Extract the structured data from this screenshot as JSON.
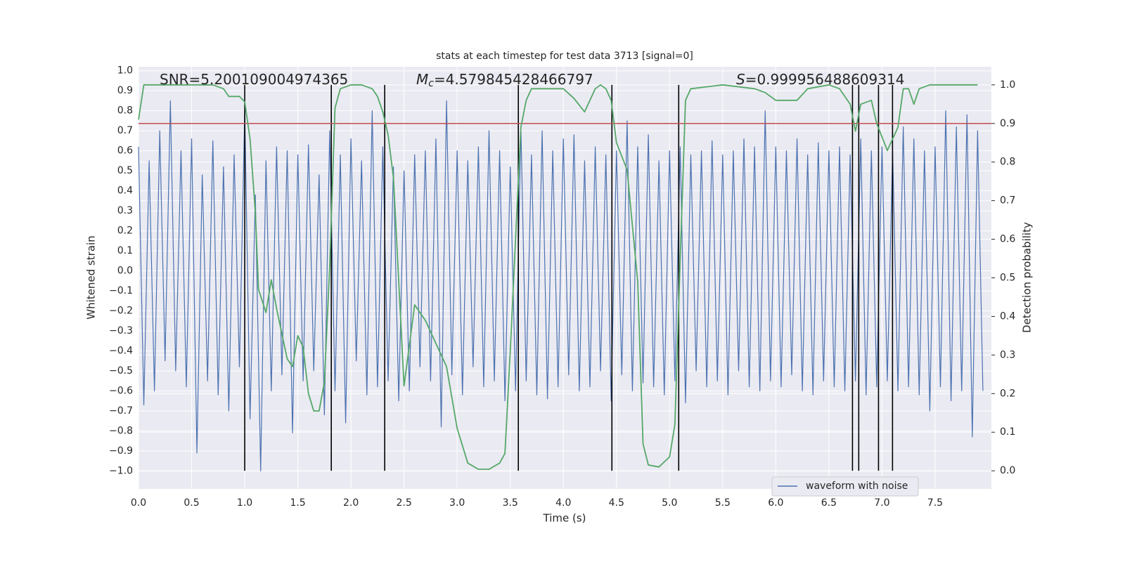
{
  "chart_data": {
    "type": "line",
    "title": "stats at each timestep for test data 3713 [signal=0]",
    "xlabel": "Time (s)",
    "ylabel": "Whitened strain",
    "y2label": "Detection probability",
    "xlim": [
      0,
      8.03
    ],
    "ylim": [
      -1.09,
      1.02
    ],
    "y2lim": [
      -0.047,
      1.047
    ],
    "xticks": [
      {
        "value": 0,
        "label": "0.0"
      },
      {
        "value": 0.5,
        "label": "0.5"
      },
      {
        "value": 1,
        "label": "1.0"
      },
      {
        "value": 1.5,
        "label": "1.5"
      },
      {
        "value": 2,
        "label": "2.0"
      },
      {
        "value": 2.5,
        "label": "2.5"
      },
      {
        "value": 3,
        "label": "3.0"
      },
      {
        "value": 3.5,
        "label": "3.5"
      },
      {
        "value": 4,
        "label": "4.0"
      },
      {
        "value": 4.5,
        "label": "4.5"
      },
      {
        "value": 5,
        "label": "5.0"
      },
      {
        "value": 5.5,
        "label": "5.5"
      },
      {
        "value": 6,
        "label": "6.0"
      },
      {
        "value": 6.5,
        "label": "6.5"
      },
      {
        "value": 7,
        "label": "7.0"
      },
      {
        "value": 7.5,
        "label": "7.5"
      }
    ],
    "yticks": [
      {
        "value": -1,
        "label": "−1.0"
      },
      {
        "value": -0.9,
        "label": "−0.9"
      },
      {
        "value": -0.8,
        "label": "−0.8"
      },
      {
        "value": -0.7,
        "label": "−0.7"
      },
      {
        "value": -0.6,
        "label": "−0.6"
      },
      {
        "value": -0.5,
        "label": "−0.5"
      },
      {
        "value": -0.4,
        "label": "−0.4"
      },
      {
        "value": -0.3,
        "label": "−0.3"
      },
      {
        "value": -0.2,
        "label": "−0.2"
      },
      {
        "value": -0.1,
        "label": "−0.1"
      },
      {
        "value": 0,
        "label": "0.0"
      },
      {
        "value": 0.1,
        "label": "0.1"
      },
      {
        "value": 0.2,
        "label": "0.2"
      },
      {
        "value": 0.3,
        "label": "0.3"
      },
      {
        "value": 0.4,
        "label": "0.4"
      },
      {
        "value": 0.5,
        "label": "0.5"
      },
      {
        "value": 0.6,
        "label": "0.6"
      },
      {
        "value": 0.7,
        "label": "0.7"
      },
      {
        "value": 0.8,
        "label": "0.8"
      },
      {
        "value": 0.9,
        "label": "0.9"
      },
      {
        "value": 1,
        "label": "1.0"
      }
    ],
    "y2ticks": [
      {
        "value": 0,
        "label": "0.0"
      },
      {
        "value": 0.1,
        "label": "0.1"
      },
      {
        "value": 0.2,
        "label": "0.2"
      },
      {
        "value": 0.3,
        "label": "0.3"
      },
      {
        "value": 0.4,
        "label": "0.4"
      },
      {
        "value": 0.5,
        "label": "0.5"
      },
      {
        "value": 0.6,
        "label": "0.6"
      },
      {
        "value": 0.7,
        "label": "0.7"
      },
      {
        "value": 0.8,
        "label": "0.8"
      },
      {
        "value": 0.9,
        "label": "0.9"
      },
      {
        "value": 1,
        "label": "1.0"
      }
    ],
    "grid": true,
    "legend": "lower right",
    "annotations": [
      {
        "text": "SNR=5.200109004974365"
      },
      {
        "symbol": "M",
        "sub": "c",
        "text": "=4.579845428466797"
      },
      {
        "symbol": "S",
        "text": "=0.999956488609314"
      }
    ],
    "threshold": {
      "value": 0.9,
      "axis": "y2",
      "color": "#c44e52"
    },
    "vlines": {
      "x": [
        1.0,
        1.815,
        2.318,
        3.576,
        4.457,
        5.086,
        6.722,
        6.781,
        6.967,
        7.099
      ],
      "ymin": 0,
      "ymax": 1,
      "axis": "y2",
      "color": "#000000"
    },
    "series": [
      {
        "name": "waveform with noise",
        "color": "#4c72b0",
        "x": [
          0,
          0.05,
          0.1,
          0.15,
          0.2,
          0.25,
          0.3,
          0.35,
          0.4,
          0.45,
          0.5,
          0.55,
          0.6,
          0.65,
          0.7,
          0.75,
          0.8,
          0.85,
          0.9,
          0.95,
          1,
          1.05,
          1.1,
          1.15,
          1.2,
          1.25,
          1.3,
          1.35,
          1.4,
          1.45,
          1.5,
          1.55,
          1.6,
          1.65,
          1.7,
          1.75,
          1.8,
          1.85,
          1.9,
          1.95,
          2,
          2.05,
          2.1,
          2.15,
          2.2,
          2.25,
          2.3,
          2.35,
          2.4,
          2.45,
          2.5,
          2.55,
          2.6,
          2.65,
          2.7,
          2.75,
          2.8,
          2.85,
          2.9,
          2.95,
          3,
          3.05,
          3.1,
          3.15,
          3.2,
          3.25,
          3.3,
          3.35,
          3.4,
          3.45,
          3.5,
          3.55,
          3.6,
          3.65,
          3.7,
          3.75,
          3.8,
          3.85,
          3.9,
          3.95,
          4,
          4.05,
          4.1,
          4.15,
          4.2,
          4.25,
          4.3,
          4.35,
          4.4,
          4.45,
          4.5,
          4.55,
          4.6,
          4.65,
          4.7,
          4.75,
          4.8,
          4.85,
          4.9,
          4.95,
          5,
          5.05,
          5.1,
          5.15,
          5.2,
          5.25,
          5.3,
          5.35,
          5.4,
          5.45,
          5.5,
          5.55,
          5.6,
          5.65,
          5.7,
          5.75,
          5.8,
          5.85,
          5.9,
          5.95,
          6,
          6.05,
          6.1,
          6.15,
          6.2,
          6.25,
          6.3,
          6.35,
          6.4,
          6.45,
          6.5,
          6.55,
          6.6,
          6.65,
          6.7,
          6.75,
          6.8,
          6.85,
          6.9,
          6.95,
          7,
          7.05,
          7.1,
          7.15,
          7.2,
          7.25,
          7.3,
          7.35,
          7.4,
          7.45,
          7.5,
          7.55,
          7.6,
          7.65,
          7.7,
          7.75,
          7.8,
          7.85,
          7.9,
          7.95
        ],
        "values": [
          0.62,
          -0.67,
          0.55,
          -0.6,
          0.7,
          -0.45,
          0.85,
          -0.5,
          0.6,
          -0.58,
          0.66,
          -0.91,
          0.48,
          -0.55,
          0.65,
          -0.62,
          0.52,
          -0.7,
          0.58,
          -0.48,
          0.8,
          -0.74,
          0.38,
          -1.0,
          0.55,
          -0.6,
          0.62,
          -0.52,
          0.6,
          -0.81,
          0.58,
          -0.55,
          0.63,
          -0.5,
          0.48,
          -0.72,
          0.7,
          -0.6,
          0.58,
          -0.76,
          0.66,
          -0.45,
          0.55,
          -0.62,
          0.8,
          -0.58,
          0.62,
          -0.55,
          0.52,
          -0.65,
          0.5,
          -0.6,
          0.58,
          -0.48,
          0.6,
          -0.55,
          0.66,
          -0.78,
          0.85,
          -0.52,
          0.6,
          -0.62,
          0.55,
          -0.48,
          0.62,
          -0.58,
          0.7,
          -0.55,
          0.6,
          -0.65,
          0.52,
          -0.6,
          0.72,
          -0.55,
          0.58,
          -0.62,
          0.7,
          -0.64,
          0.6,
          -0.58,
          0.66,
          -0.52,
          0.68,
          -0.6,
          0.55,
          -0.58,
          0.62,
          -0.5,
          0.58,
          -0.65,
          0.6,
          -0.52,
          0.75,
          -0.6,
          0.62,
          -0.56,
          0.68,
          -0.58,
          0.55,
          -0.62,
          0.6,
          -0.55,
          0.62,
          -0.66,
          0.58,
          -0.5,
          0.6,
          -0.58,
          0.65,
          -0.55,
          0.58,
          -0.62,
          0.6,
          -0.5,
          0.66,
          -0.58,
          0.62,
          -0.6,
          0.8,
          -0.55,
          0.62,
          -0.58,
          0.6,
          -0.52,
          0.66,
          -0.6,
          0.58,
          -0.62,
          0.64,
          -0.55,
          0.6,
          -0.58,
          0.62,
          -0.6,
          0.58,
          -0.55,
          0.66,
          -0.62,
          0.6,
          -0.58,
          0.62,
          -0.55,
          0.6,
          -0.6,
          0.72,
          -0.58,
          0.66,
          -0.62,
          0.6,
          -0.7,
          0.62,
          -0.58,
          0.8,
          -0.65,
          0.72,
          -0.6,
          0.78,
          -0.83,
          0.7,
          -0.6
        ]
      },
      {
        "color": "#55a868",
        "axis": "y2",
        "x": [
          0,
          0.05,
          0.1,
          0.2,
          0.3,
          0.4,
          0.5,
          0.6,
          0.7,
          0.8,
          0.85,
          0.95,
          1.0,
          1.05,
          1.1,
          1.13,
          1.2,
          1.25,
          1.3,
          1.4,
          1.45,
          1.5,
          1.55,
          1.6,
          1.65,
          1.7,
          1.75,
          1.8,
          1.85,
          1.9,
          2.0,
          2.1,
          2.2,
          2.25,
          2.3,
          2.35,
          2.4,
          2.45,
          2.5,
          2.6,
          2.7,
          2.8,
          2.9,
          3.0,
          3.1,
          3.2,
          3.3,
          3.4,
          3.45,
          3.5,
          3.6,
          3.65,
          3.7,
          3.8,
          3.9,
          4.0,
          4.1,
          4.2,
          4.3,
          4.35,
          4.4,
          4.45,
          4.5,
          4.6,
          4.7,
          4.75,
          4.8,
          4.9,
          5.0,
          5.05,
          5.1,
          5.15,
          5.2,
          5.5,
          5.8,
          5.9,
          6.0,
          6.2,
          6.3,
          6.5,
          6.6,
          6.65,
          6.7,
          6.75,
          6.8,
          6.9,
          6.95,
          7.05,
          7.15,
          7.2,
          7.25,
          7.3,
          7.35,
          7.45,
          7.9
        ],
        "values": [
          0.91,
          1,
          1,
          1,
          1,
          1,
          1,
          1,
          1,
          0.99,
          0.97,
          0.97,
          0.956,
          0.86,
          0.67,
          0.47,
          0.41,
          0.495,
          0.42,
          0.29,
          0.27,
          0.35,
          0.32,
          0.2,
          0.155,
          0.155,
          0.23,
          0.53,
          0.94,
          0.99,
          1,
          1,
          0.99,
          0.97,
          0.93,
          0.87,
          0.76,
          0.49,
          0.22,
          0.43,
          0.39,
          0.33,
          0.27,
          0.11,
          0.02,
          0.004,
          0.004,
          0.02,
          0.045,
          0.31,
          0.89,
          0.96,
          0.99,
          0.99,
          0.99,
          0.99,
          0.965,
          0.93,
          0.99,
          1.0,
          0.99,
          0.96,
          0.85,
          0.78,
          0.49,
          0.07,
          0.015,
          0.01,
          0.036,
          0.12,
          0.55,
          0.96,
          0.99,
          1.0,
          0.99,
          0.98,
          0.96,
          0.96,
          0.99,
          1.0,
          0.99,
          0.97,
          0.95,
          0.88,
          0.95,
          0.96,
          0.9,
          0.83,
          0.89,
          0.99,
          0.99,
          0.95,
          0.99,
          1.0,
          1.0
        ]
      }
    ]
  }
}
